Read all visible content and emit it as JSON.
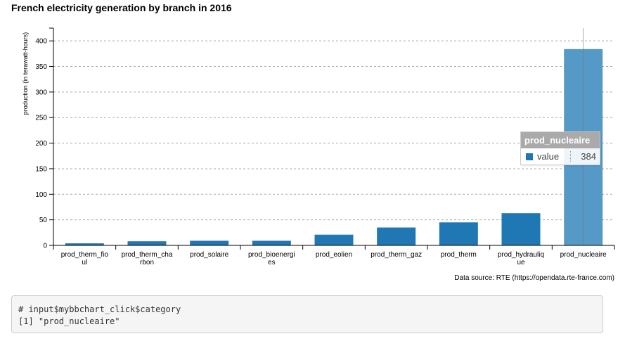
{
  "chart_data": {
    "type": "bar",
    "title": "French electricity generation by branch in 2016",
    "xlabel": "",
    "ylabel": "production (in terawatt-hours)",
    "ylim": [
      0,
      425
    ],
    "yticks": [
      0,
      50,
      100,
      150,
      200,
      250,
      300,
      350,
      400
    ],
    "grid": "horizontal dashed",
    "categories": [
      "prod_therm_fioul",
      "prod_therm_charbon",
      "prod_solaire",
      "prod_bioenergies",
      "prod_eolien",
      "prod_therm_gaz",
      "prod_therm",
      "prod_hydraulique",
      "prod_nucleaire"
    ],
    "category_labels": [
      [
        "prod_therm_fio",
        "ul"
      ],
      [
        "prod_therm_cha",
        "rbon"
      ],
      [
        "prod_solaire"
      ],
      [
        "prod_bioenergi",
        "es"
      ],
      [
        "prod_eolien"
      ],
      [
        "prod_therm_gaz"
      ],
      [
        "prod_therm"
      ],
      [
        "prod_hydrauliq",
        "ue"
      ],
      [
        "prod_nucleaire"
      ]
    ],
    "values": [
      4,
      8,
      9,
      9,
      21,
      35,
      45,
      63,
      384
    ],
    "color": "#1f77b4",
    "highlight_color": "#5599c7",
    "highlighted": "prod_nucleaire"
  },
  "tooltip": {
    "title": "prod_nucleaire",
    "series": "value",
    "value": "384"
  },
  "source": "Data source: RTE (https://opendata.rte-france.com)",
  "console": {
    "line1": "# input$mybbchart_click$category",
    "line2": "[1] \"prod_nucleaire\""
  }
}
